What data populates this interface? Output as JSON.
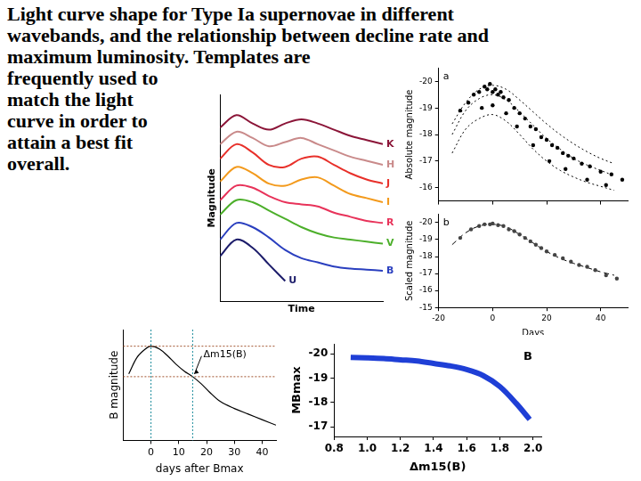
{
  "heading": [
    "Light curve shape for Type Ia supernovae in different",
    "wavebands, and the relationship between decline rate and",
    "maximum luminosity. Templates are",
    "frequently used to",
    "match the light",
    "curve in order to",
    "attain a best fit",
    "overall."
  ],
  "chart_data": [
    {
      "type": "line",
      "x_label": "Time",
      "y_label": "Magnitude",
      "x": [
        0,
        1,
        2,
        3,
        4,
        5,
        6,
        7,
        8,
        9,
        10
      ],
      "xlim": [
        0,
        10
      ],
      "ylim": [
        0,
        10
      ],
      "tick_labels": false,
      "grid": false,
      "series": [
        {
          "name": "K",
          "color": "#8b1538",
          "values": [
            8.4,
            9.0,
            8.6,
            8.3,
            8.6,
            8.8,
            8.6,
            8.3,
            8.0,
            7.8,
            7.6
          ]
        },
        {
          "name": "H",
          "color": "#c98a8a",
          "values": [
            7.6,
            8.2,
            7.9,
            7.5,
            7.7,
            7.9,
            7.6,
            7.3,
            7.0,
            6.8,
            6.6
          ]
        },
        {
          "name": "J",
          "color": "#e8302a",
          "values": [
            6.9,
            7.6,
            7.2,
            6.6,
            6.5,
            6.9,
            7.0,
            6.6,
            6.2,
            5.9,
            5.7
          ]
        },
        {
          "name": "I",
          "color": "#f39a1c",
          "values": [
            5.8,
            6.5,
            6.2,
            5.7,
            5.6,
            5.9,
            6.0,
            5.6,
            5.2,
            5.0,
            4.8
          ]
        },
        {
          "name": "R",
          "color": "#e8335a",
          "values": [
            4.9,
            5.6,
            5.5,
            5.1,
            4.8,
            4.7,
            4.6,
            4.3,
            4.1,
            3.9,
            3.8
          ]
        },
        {
          "name": "V",
          "color": "#4caf2a",
          "values": [
            4.2,
            4.9,
            4.8,
            4.4,
            4.0,
            3.6,
            3.3,
            3.1,
            3.0,
            2.9,
            2.8
          ]
        },
        {
          "name": "B",
          "color": "#2a3fbf",
          "values": [
            3.0,
            3.8,
            3.6,
            3.1,
            2.5,
            2.1,
            1.9,
            1.7,
            1.6,
            1.55,
            1.5
          ]
        },
        {
          "name": "U",
          "color": "#1c1c6a",
          "values": [
            2.2,
            3.0,
            2.6,
            1.8,
            1.0,
            null,
            null,
            null,
            null,
            null,
            null
          ]
        }
      ]
    },
    {
      "type": "scatter",
      "y_label": "Absolute magnitude",
      "xlim": [
        -20,
        50
      ],
      "xticks": [
        -20,
        0,
        20,
        40
      ],
      "ylim": [
        -20.5,
        -15.5
      ],
      "yticks": [
        -20,
        -19,
        -18,
        -17,
        -16
      ],
      "tick_labels": "y",
      "grid": false,
      "annotation": "a",
      "series": [
        {
          "type": "scatter",
          "marker": "circle",
          "color": "#000000",
          "x": [
            -12,
            -9,
            -7,
            -5,
            -3,
            -2,
            -1,
            0,
            1,
            2,
            3,
            4,
            6,
            8,
            10,
            12,
            14,
            16,
            18,
            20,
            22,
            24,
            26,
            28,
            30,
            33,
            36,
            40,
            44,
            48,
            -4,
            0,
            5,
            9,
            15,
            21,
            27,
            35,
            42
          ],
          "values": [
            -18.9,
            -19.2,
            -19.5,
            -19.6,
            -19.8,
            -19.7,
            -19.9,
            -19.6,
            -19.7,
            -19.5,
            -19.6,
            -19.4,
            -19.3,
            -19.0,
            -18.8,
            -18.6,
            -18.3,
            -18.2,
            -17.9,
            -17.8,
            -17.6,
            -17.5,
            -17.3,
            -17.2,
            -17.1,
            -16.9,
            -16.8,
            -16.6,
            -16.5,
            -16.3,
            -19.0,
            -19.1,
            -18.8,
            -18.3,
            -17.6,
            -17.0,
            -16.7,
            -16.3,
            -16.1
          ]
        },
        {
          "type": "line",
          "line_style": "dotted",
          "color": "#000000",
          "x": [
            -15,
            -10,
            -5,
            0,
            5,
            10,
            15,
            20,
            25,
            30,
            35,
            40,
            45
          ],
          "values": [
            -18.4,
            -19.2,
            -19.7,
            -19.85,
            -19.7,
            -19.3,
            -18.85,
            -18.4,
            -18.0,
            -17.65,
            -17.35,
            -17.1,
            -16.9
          ]
        },
        {
          "type": "line",
          "line_style": "dotted",
          "color": "#000000",
          "x": [
            -15,
            -10,
            -5,
            0,
            5,
            10,
            15,
            20,
            25,
            30,
            35,
            40,
            45
          ],
          "values": [
            -18.0,
            -18.9,
            -19.35,
            -19.5,
            -19.3,
            -18.85,
            -18.35,
            -17.85,
            -17.45,
            -17.1,
            -16.85,
            -16.65,
            -16.45
          ]
        },
        {
          "type": "line",
          "line_style": "dotted",
          "color": "#000000",
          "x": [
            -15,
            -10,
            -5,
            0,
            5,
            10,
            15,
            20,
            25,
            30,
            35,
            40,
            45
          ],
          "values": [
            -17.3,
            -18.2,
            -18.6,
            -18.75,
            -18.5,
            -18.0,
            -17.45,
            -17.0,
            -16.65,
            -16.4,
            -16.2,
            -16.05,
            -15.9
          ]
        }
      ]
    },
    {
      "type": "scatter",
      "x_label": "Days",
      "y_label": "Scaled magnitude",
      "xlim": [
        -20,
        50
      ],
      "xticks": [
        -20,
        0,
        20,
        40
      ],
      "ylim": [
        -20.5,
        -15
      ],
      "yticks": [
        -20,
        -19,
        -18,
        -17,
        -16,
        -15
      ],
      "grid": false,
      "annotation": "b",
      "series": [
        {
          "type": "scatter",
          "marker": "circle",
          "color": "#444444",
          "x": [
            -12,
            -8,
            -5,
            -3,
            -1,
            0,
            2,
            4,
            6,
            8,
            10,
            12,
            14,
            16,
            18,
            20,
            23,
            26,
            29,
            32,
            35,
            38,
            42,
            46
          ],
          "values": [
            -19.1,
            -19.6,
            -19.8,
            -19.9,
            -19.9,
            -19.95,
            -19.85,
            -19.8,
            -19.6,
            -19.5,
            -19.3,
            -19.1,
            -18.9,
            -18.7,
            -18.5,
            -18.3,
            -18.1,
            -17.9,
            -17.7,
            -17.5,
            -17.4,
            -17.2,
            -16.9,
            -16.7
          ]
        },
        {
          "type": "line",
          "line_style": "dashed",
          "color": "#000000",
          "x": [
            -15,
            -10,
            -5,
            0,
            5,
            10,
            15,
            20,
            25,
            30,
            35,
            40,
            45
          ],
          "values": [
            -18.7,
            -19.4,
            -19.8,
            -19.9,
            -19.75,
            -19.3,
            -18.8,
            -18.3,
            -17.9,
            -17.6,
            -17.35,
            -17.1,
            -16.9
          ]
        }
      ]
    },
    {
      "type": "line",
      "x_label": "days after Bmax",
      "y_label": "B magnitude",
      "xlim": [
        -10,
        45
      ],
      "xticks": [
        0,
        10,
        20,
        30,
        40
      ],
      "ylim": [
        0,
        4
      ],
      "tick_labels": "x",
      "grid": false,
      "annotation": "Δm15(B)",
      "reference_lines": {
        "x": [
          0,
          15
        ],
        "y": [
          0.6,
          1.7
        ]
      },
      "series": [
        {
          "color": "#000000",
          "x": [
            -8,
            -5,
            -2,
            0,
            3,
            6,
            9,
            12,
            15,
            18,
            21,
            25,
            30,
            35,
            40,
            45
          ],
          "values": [
            1.6,
            1.0,
            0.7,
            0.6,
            0.7,
            0.95,
            1.25,
            1.5,
            1.7,
            1.95,
            2.25,
            2.6,
            2.85,
            3.05,
            3.25,
            3.45
          ]
        }
      ]
    },
    {
      "type": "line",
      "x_label": "Δm15(B)",
      "y_label": "MBmax",
      "xlim": [
        0.8,
        2.05
      ],
      "xticks": [
        0.8,
        {
          "value": 1,
          "label": "1.0"
        },
        1.2,
        1.4,
        1.6,
        1.8,
        {
          "value": 2,
          "label": "2.0"
        }
      ],
      "ylim": [
        -20.4,
        -16.6
      ],
      "yticks": [
        -20,
        -19,
        -18,
        -17
      ],
      "grid": false,
      "annotation": "B",
      "series": [
        {
          "color": "#1f3fd6",
          "x": [
            0.9,
            1.0,
            1.1,
            1.2,
            1.3,
            1.4,
            1.5,
            1.6,
            1.7,
            1.8,
            1.9,
            1.98
          ],
          "values": [
            -19.85,
            -19.83,
            -19.8,
            -19.75,
            -19.7,
            -19.6,
            -19.5,
            -19.35,
            -19.1,
            -18.65,
            -17.95,
            -17.3
          ]
        }
      ]
    }
  ]
}
